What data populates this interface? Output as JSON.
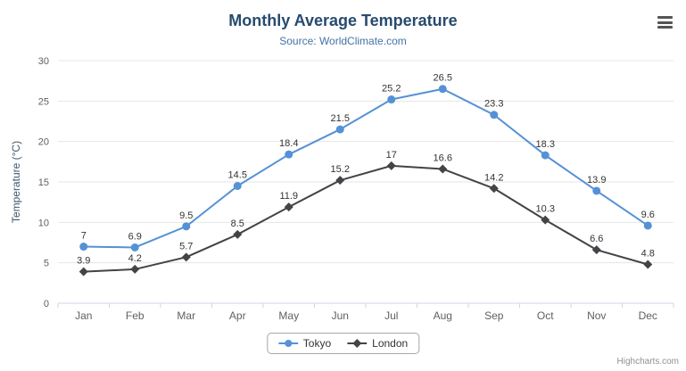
{
  "credits": "Highcharts.com",
  "colors": {
    "title": "#274b6d",
    "subtitle": "#4572a7",
    "axis_title": "#3e576f",
    "tick_label": "#606060",
    "grid": "#e6e6e6",
    "axis_line": "#ccd6eb",
    "data_label": "#333333",
    "legend_border": "#a7a7a7",
    "legend_text": "#333333",
    "credits": "#909090",
    "background": "#ffffff"
  },
  "chart_data": {
    "type": "line",
    "title": "Monthly Average Temperature",
    "subtitle": "Source: WorldClimate.com",
    "categories": [
      "Jan",
      "Feb",
      "Mar",
      "Apr",
      "May",
      "Jun",
      "Jul",
      "Aug",
      "Sep",
      "Oct",
      "Nov",
      "Dec"
    ],
    "series": [
      {
        "name": "Tokyo",
        "color": "#5591d6",
        "marker": "circle",
        "values": [
          7,
          6.9,
          9.5,
          14.5,
          18.4,
          21.5,
          25.2,
          26.5,
          23.3,
          18.3,
          13.9,
          9.6
        ]
      },
      {
        "name": "London",
        "color": "#434348",
        "marker": "diamond",
        "values": [
          3.9,
          4.2,
          5.7,
          8.5,
          11.9,
          15.2,
          17,
          16.6,
          14.2,
          10.3,
          6.6,
          4.8
        ]
      }
    ],
    "xlabel": "",
    "ylabel": "Temperature (°C)",
    "ylim": [
      0,
      30
    ],
    "ytick_step": 5,
    "grid": true,
    "data_labels": true,
    "legend_position": "bottom"
  }
}
